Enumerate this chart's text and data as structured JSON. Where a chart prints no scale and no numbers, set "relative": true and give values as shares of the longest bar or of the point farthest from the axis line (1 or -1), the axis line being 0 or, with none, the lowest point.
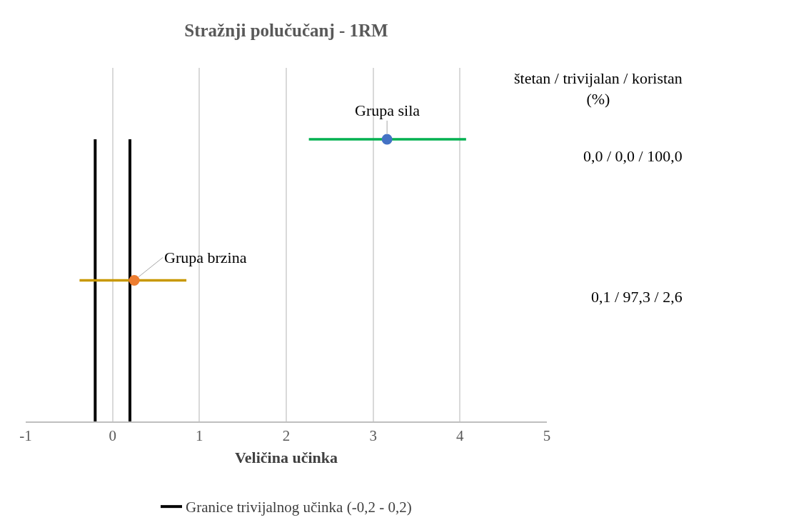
{
  "chart_data": {
    "type": "scatter",
    "title": "Stražnji polučučanj - 1RM",
    "xlabel": "Veličina učinka",
    "relative": true,
    "xlim": [
      -1,
      5
    ],
    "xticks": [
      -1,
      0,
      1,
      2,
      3,
      4,
      5
    ],
    "grid": "x",
    "legend": "bottom",
    "marker": "circle",
    "series": [
      {
        "type": "line",
        "name": "Granice trivijalnog učinka (-0,2 - 0,2)",
        "color": "#000000",
        "marker": "none",
        "x": [
          -0.2,
          -0.2
        ],
        "values": [
          0,
          1
        ]
      },
      {
        "type": "line",
        "color": "#000000",
        "marker": "none",
        "x": [
          0.2,
          0.2
        ],
        "values": [
          0,
          1
        ]
      },
      {
        "name": "Grupa sila",
        "color": "#00b050",
        "colors": [
          "#4472c4"
        ],
        "x": [
          3.16
        ],
        "values": [
          1
        ],
        "xerrors": [
          [
            2.26,
            4.07
          ]
        ]
      },
      {
        "name": "Grupa brzina",
        "color": "#c89800",
        "colors": [
          "#ed7d31"
        ],
        "x": [
          0.25
        ],
        "values": [
          0.5
        ],
        "xerrors": [
          [
            -0.38,
            0.85
          ]
        ]
      }
    ],
    "annotations": [
      "štetan / trivijalan / koristan (%)",
      "0,0 / 0,0 / 100,0",
      "0,1 / 97,3 / 2,6"
    ]
  }
}
